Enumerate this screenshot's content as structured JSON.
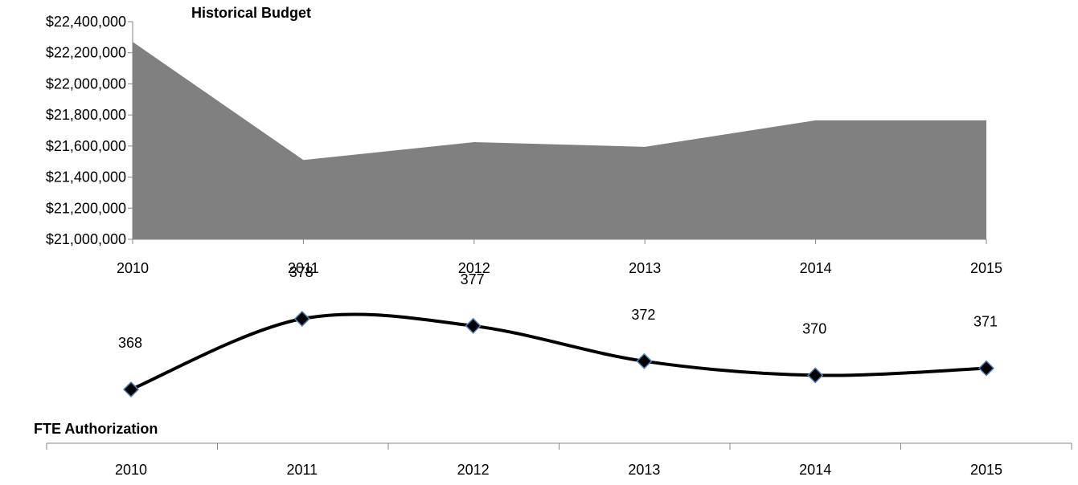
{
  "chart_data": [
    {
      "type": "area",
      "title": "Historical Budget",
      "x": [
        "2010",
        "2011",
        "2012",
        "2013",
        "2014",
        "2015"
      ],
      "values": [
        22270000,
        21510000,
        21625000,
        21595000,
        21765000,
        21765000
      ],
      "ylim": [
        21000000,
        22400000
      ],
      "yticks": [
        "$21,000,000",
        "$21,200,000",
        "$21,400,000",
        "$21,600,000",
        "$21,800,000",
        "$22,000,000",
        "$22,200,000",
        "$22,400,000"
      ],
      "ytick_values": [
        21000000,
        21200000,
        21400000,
        21600000,
        21800000,
        22000000,
        22200000,
        22400000
      ],
      "fill_color": "#808080",
      "grid": false
    },
    {
      "type": "line",
      "title": "FTE Authorization",
      "x": [
        "2010",
        "2011",
        "2012",
        "2013",
        "2014",
        "2015"
      ],
      "values": [
        368,
        378,
        377,
        372,
        370,
        371
      ],
      "data_labels": [
        "368",
        "378",
        "377",
        "372",
        "370",
        "371"
      ],
      "smooth": true,
      "line_color": "#000000",
      "marker": "diamond",
      "marker_color": "#000000",
      "marker_edge_color": "#4F81BD",
      "grid": false
    }
  ]
}
